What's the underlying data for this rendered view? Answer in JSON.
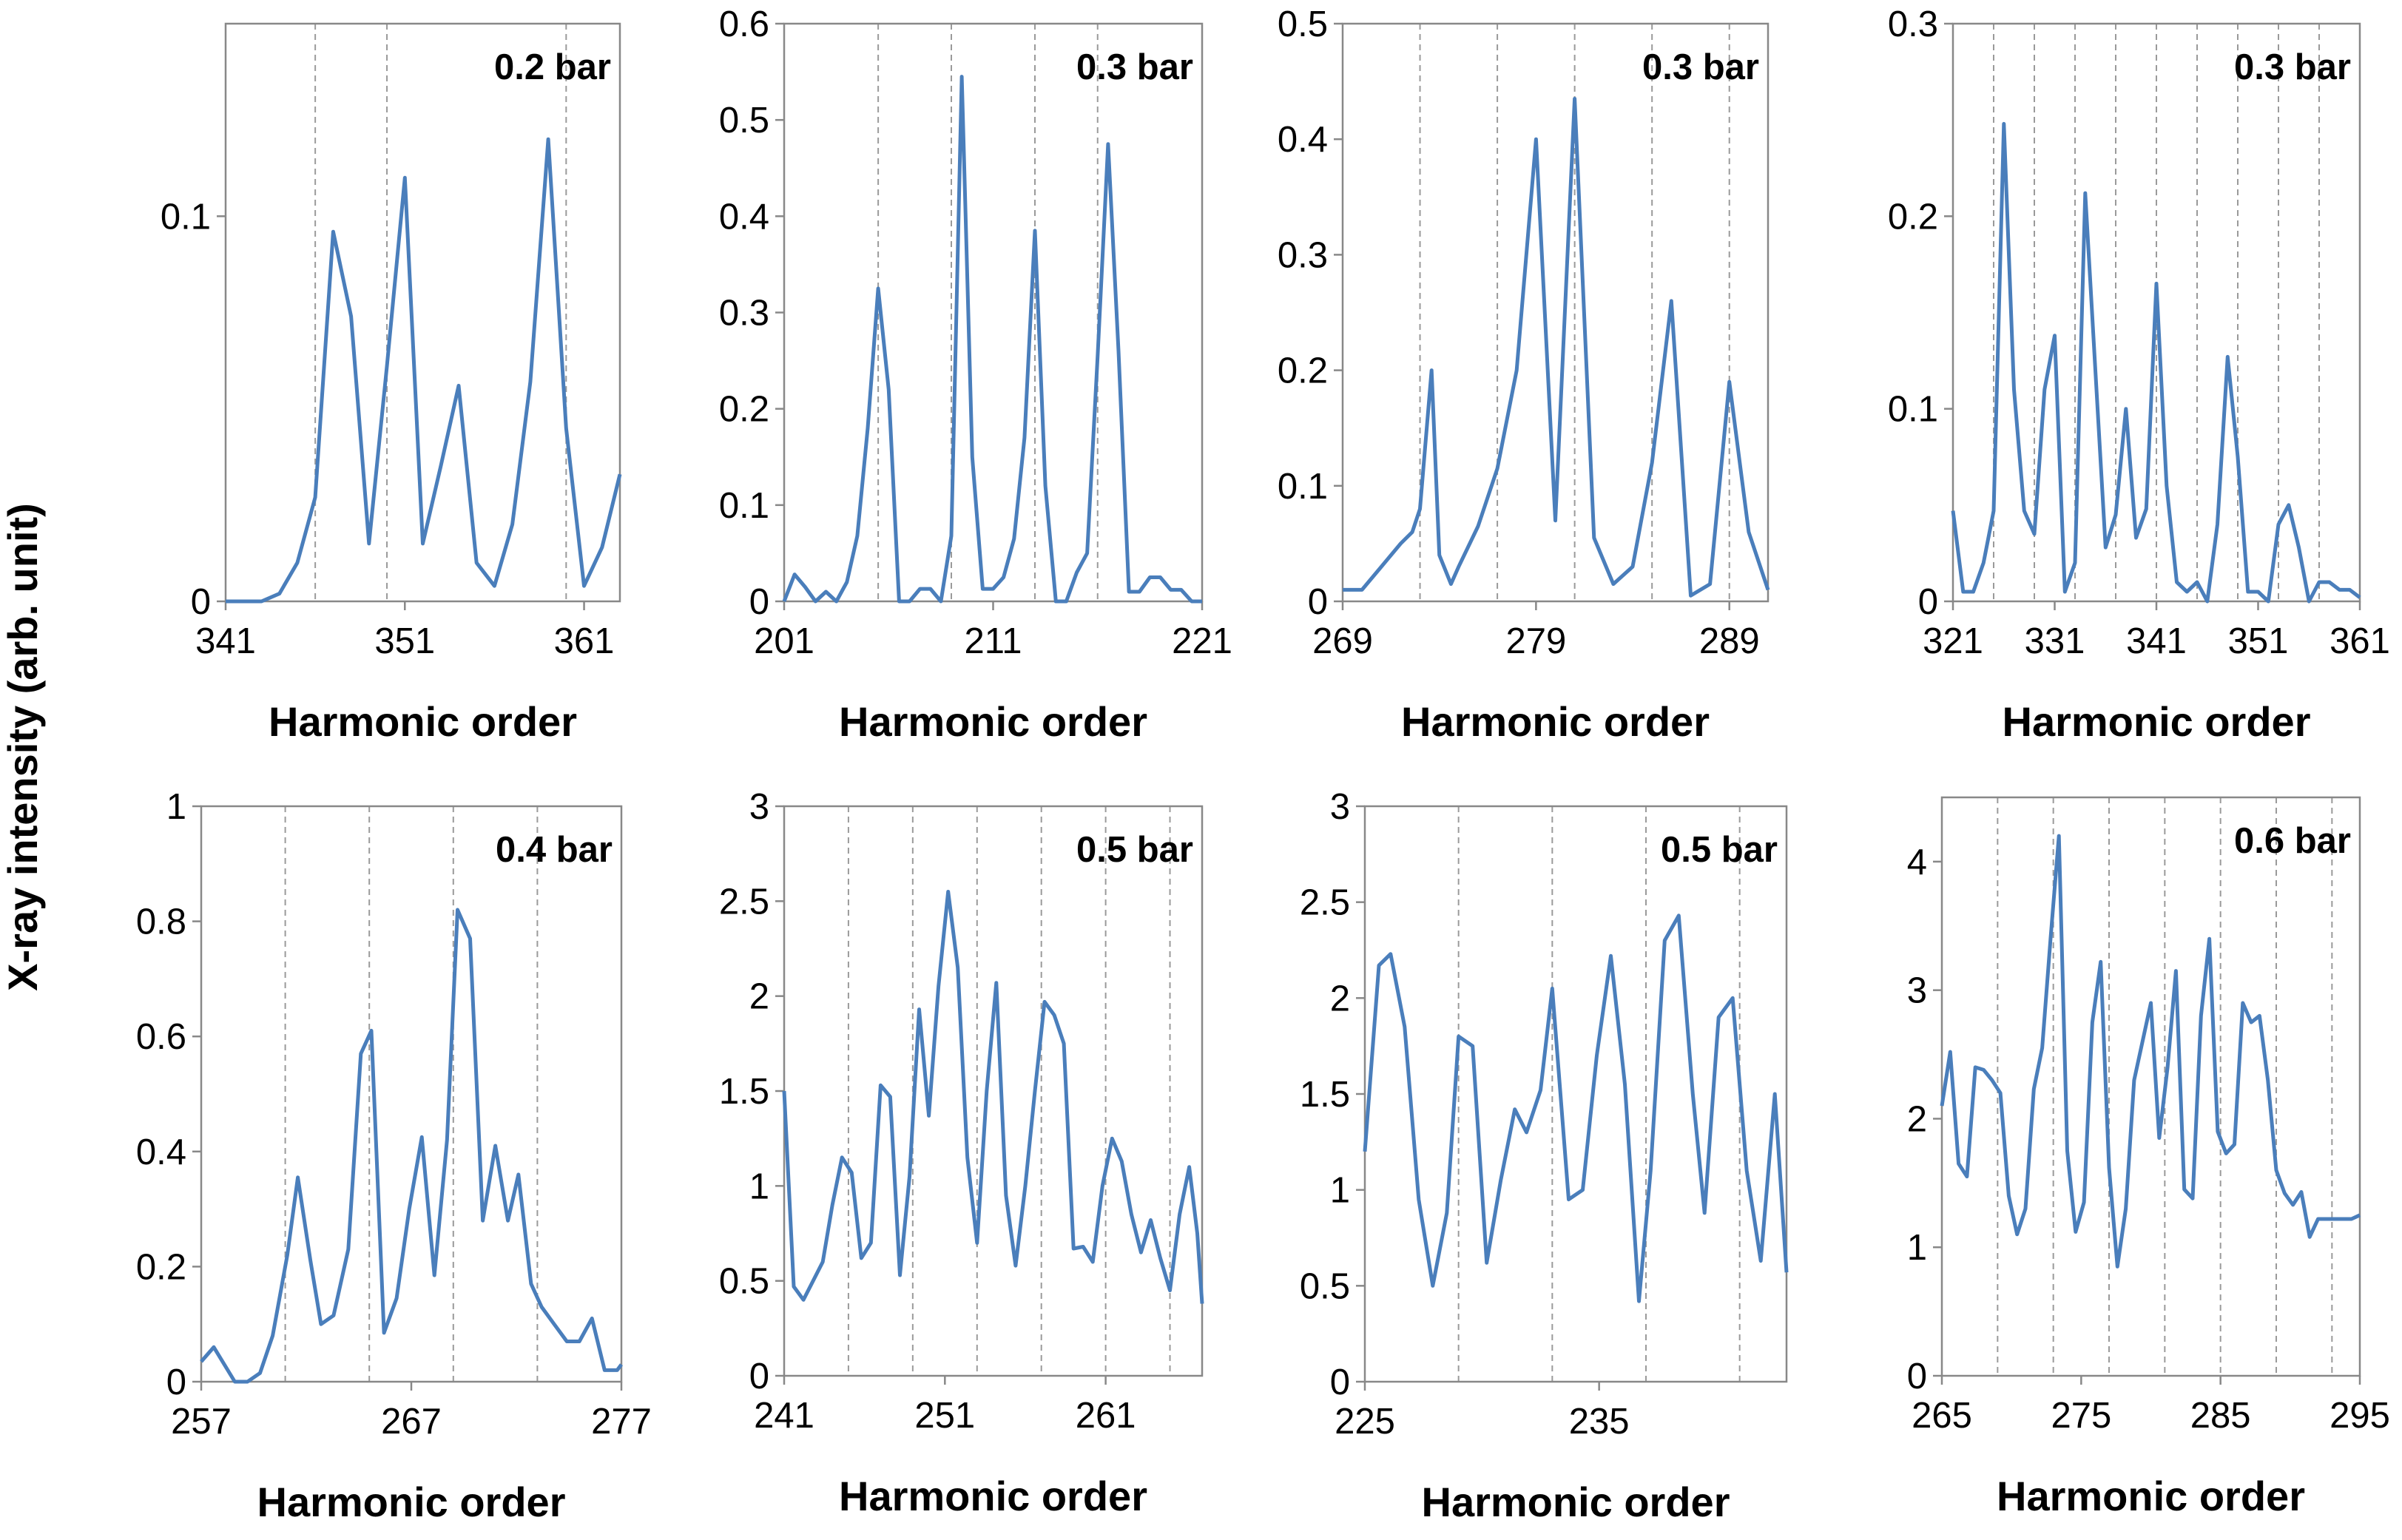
{
  "figure": {
    "shared_ylabel": "X-ray intensity (arb. unit)"
  },
  "chart_data": [
    {
      "type": "line",
      "title": "0.2 bar",
      "xlabel": "Harmonic order",
      "xlim": [
        341,
        363
      ],
      "ylim": [
        0,
        0.15
      ],
      "xticks": [
        341,
        351,
        361
      ],
      "yticks": [
        0,
        0.1
      ],
      "ytick_labels": [
        "0",
        "0.1"
      ],
      "grid_x": [
        346,
        350,
        360
      ],
      "x": [
        341,
        342,
        343,
        344,
        345,
        346,
        347,
        348,
        349,
        350,
        351,
        352,
        353,
        354,
        355,
        356,
        357,
        358,
        359,
        360,
        361,
        362,
        363
      ],
      "values": [
        0,
        0,
        0,
        0.002,
        0.01,
        0.027,
        0.096,
        0.074,
        0.015,
        0.061,
        0.11,
        0.015,
        0.035,
        0.056,
        0.01,
        0.004,
        0.02,
        0.057,
        0.12,
        0.045,
        0.004,
        0.014,
        0.033
      ]
    },
    {
      "type": "line",
      "title": "0.3 bar",
      "xlabel": "Harmonic order",
      "xlim": [
        201,
        221
      ],
      "ylim": [
        0,
        0.6
      ],
      "xticks": [
        201,
        211,
        221
      ],
      "yticks": [
        0,
        0.1,
        0.2,
        0.3,
        0.4,
        0.5,
        0.6
      ],
      "ytick_labels": [
        "0",
        "0.1",
        "0.2",
        "0.3",
        "0.4",
        "0.5",
        "0.6"
      ],
      "grid_x": [
        205.5,
        209,
        213,
        216
      ],
      "x": [
        201,
        201.5,
        202,
        202.5,
        203,
        203.5,
        204,
        204.5,
        205,
        205.5,
        206,
        206.5,
        207,
        207.5,
        208,
        208.5,
        209,
        209.5,
        210,
        210.5,
        211,
        211.5,
        212,
        212.5,
        213,
        213.5,
        214,
        214.5,
        215,
        215.5,
        216,
        216.5,
        217,
        217.5,
        218,
        218.5,
        219,
        219.5,
        220,
        220.5,
        221
      ],
      "values": [
        0,
        0.028,
        0.015,
        0.0,
        0.01,
        0.0,
        0.02,
        0.068,
        0.18,
        0.325,
        0.22,
        0.0,
        0.0,
        0.013,
        0.013,
        0.0,
        0.068,
        0.545,
        0.15,
        0.013,
        0.013,
        0.025,
        0.065,
        0.17,
        0.385,
        0.12,
        0.0,
        0.0,
        0.03,
        0.05,
        0.255,
        0.475,
        0.26,
        0.01,
        0.01,
        0.025,
        0.025,
        0.012,
        0.012,
        0.0,
        0.0
      ]
    },
    {
      "type": "line",
      "title": "0.3 bar",
      "xlabel": "Harmonic order",
      "xlim": [
        269,
        291
      ],
      "ylim": [
        0,
        0.5
      ],
      "xticks": [
        269,
        279,
        289
      ],
      "yticks": [
        0,
        0.1,
        0.2,
        0.3,
        0.4,
        0.5
      ],
      "ytick_labels": [
        "0",
        "0.1",
        "0.2",
        "0.3",
        "0.4",
        "0.5"
      ],
      "grid_x": [
        273,
        277,
        281,
        285,
        289
      ],
      "x": [
        269,
        270,
        271,
        272,
        272.6,
        273,
        273.6,
        274,
        274.6,
        275,
        276,
        277,
        278,
        279,
        280,
        281,
        282,
        283,
        284,
        285,
        286,
        287,
        288,
        289,
        290,
        291
      ],
      "values": [
        0.01,
        0.01,
        0.03,
        0.05,
        0.06,
        0.08,
        0.2,
        0.04,
        0.015,
        0.03,
        0.065,
        0.115,
        0.2,
        0.4,
        0.07,
        0.435,
        0.055,
        0.015,
        0.03,
        0.12,
        0.26,
        0.005,
        0.015,
        0.19,
        0.06,
        0.01
      ]
    },
    {
      "type": "line",
      "title": "0.3 bar",
      "xlabel": "Harmonic order",
      "xlim": [
        321,
        361
      ],
      "ylim": [
        0,
        0.3
      ],
      "xticks": [
        321,
        331,
        341,
        351,
        361
      ],
      "yticks": [
        0,
        0.1,
        0.2,
        0.3
      ],
      "ytick_labels": [
        "0",
        "0.1",
        "0.2",
        "0.3"
      ],
      "grid_x": [
        325,
        329,
        333,
        337,
        341,
        345,
        349,
        353,
        357
      ],
      "x": [
        321,
        322,
        323,
        324,
        325,
        326,
        327,
        328,
        329,
        330,
        331,
        332,
        333,
        334,
        335,
        336,
        337,
        338,
        339,
        340,
        341,
        342,
        343,
        344,
        345,
        346,
        347,
        348,
        349,
        350,
        351,
        352,
        353,
        354,
        355,
        356,
        357,
        358,
        359,
        360,
        361
      ],
      "values": [
        0.047,
        0.005,
        0.005,
        0.02,
        0.047,
        0.248,
        0.11,
        0.047,
        0.035,
        0.11,
        0.138,
        0.005,
        0.02,
        0.212,
        0.12,
        0.028,
        0.045,
        0.1,
        0.033,
        0.048,
        0.165,
        0.06,
        0.01,
        0.005,
        0.01,
        0.0,
        0.04,
        0.127,
        0.075,
        0.005,
        0.005,
        0.0,
        0.04,
        0.05,
        0.028,
        0.0,
        0.01,
        0.01,
        0.006,
        0.006,
        0.002
      ]
    },
    {
      "type": "line",
      "title": "0.4 bar",
      "xlabel": "Harmonic order",
      "xlim": [
        257,
        277
      ],
      "ylim": [
        0,
        1
      ],
      "xticks": [
        257,
        267,
        277
      ],
      "yticks": [
        0,
        0.2,
        0.4,
        0.6,
        0.8,
        1
      ],
      "ytick_labels": [
        "0",
        "0.2",
        "0.4",
        "0.6",
        "0.8",
        "1"
      ],
      "grid_x": [
        261,
        265,
        269,
        273
      ],
      "x": [
        257,
        257.6,
        258.6,
        259.2,
        259.8,
        260.4,
        261.1,
        261.6,
        262.2,
        262.7,
        263.3,
        264.0,
        264.6,
        265.1,
        265.7,
        266.3,
        266.9,
        267.5,
        268.1,
        268.7,
        269.2,
        269.8,
        270.4,
        271.0,
        271.6,
        272.1,
        272.7,
        273.2,
        273.8,
        274.4,
        275.0,
        275.6,
        276.2,
        276.8,
        277
      ],
      "values": [
        0.035,
        0.06,
        0.0,
        0.0,
        0.015,
        0.08,
        0.22,
        0.355,
        0.21,
        0.1,
        0.115,
        0.23,
        0.57,
        0.61,
        0.085,
        0.145,
        0.3,
        0.425,
        0.185,
        0.42,
        0.82,
        0.77,
        0.28,
        0.41,
        0.28,
        0.36,
        0.17,
        0.13,
        0.1,
        0.07,
        0.07,
        0.11,
        0.02,
        0.02,
        0.03
      ]
    },
    {
      "type": "line",
      "title": "0.5 bar",
      "xlabel": "Harmonic order",
      "xlim": [
        241,
        267
      ],
      "ylim": [
        0,
        3
      ],
      "xticks": [
        241,
        251,
        261
      ],
      "yticks": [
        0,
        0.5,
        1,
        1.5,
        2,
        2.5,
        3
      ],
      "ytick_labels": [
        "0",
        "0.5",
        "1",
        "1.5",
        "2",
        "2.5",
        "3"
      ],
      "grid_x": [
        245,
        249,
        253,
        257,
        261,
        265
      ],
      "x": [
        241,
        241.6,
        242.2,
        242.8,
        243.4,
        244.0,
        244.6,
        245.2,
        245.8,
        246.4,
        247.0,
        247.6,
        248.2,
        248.8,
        249.4,
        250.0,
        250.6,
        251.2,
        251.8,
        252.4,
        253.0,
        253.6,
        254.2,
        254.8,
        255.4,
        256.0,
        256.6,
        257.2,
        257.8,
        258.4,
        259.0,
        259.6,
        260.2,
        260.8,
        261.4,
        262.0,
        262.6,
        263.2,
        263.8,
        264.4,
        265.0,
        265.6,
        266.2,
        266.7,
        267
      ],
      "values": [
        1.5,
        0.47,
        0.4,
        0.5,
        0.6,
        0.9,
        1.15,
        1.07,
        0.62,
        0.7,
        1.53,
        1.47,
        0.53,
        1.05,
        1.93,
        1.37,
        2.05,
        2.55,
        2.15,
        1.15,
        0.7,
        1.5,
        2.07,
        0.95,
        0.58,
        1.0,
        1.5,
        1.97,
        1.9,
        1.75,
        0.67,
        0.68,
        0.6,
        1.0,
        1.25,
        1.13,
        0.85,
        0.65,
        0.82,
        0.62,
        0.45,
        0.85,
        1.1,
        0.75,
        0.38
      ]
    },
    {
      "type": "line",
      "title": "0.5 bar",
      "xlabel": "Harmonic order",
      "xlim": [
        225,
        243
      ],
      "ylim": [
        0,
        3
      ],
      "xticks": [
        225,
        235
      ],
      "yticks": [
        0,
        0.5,
        1,
        1.5,
        2,
        2.5,
        3
      ],
      "ytick_labels": [
        "0",
        "0.5",
        "1",
        "1.5",
        "2",
        "2.5",
        "3"
      ],
      "grid_x": [
        229,
        233,
        237,
        241
      ],
      "x": [
        225,
        225.6,
        226.1,
        226.7,
        227.3,
        227.9,
        228.5,
        229.0,
        229.6,
        230.2,
        230.8,
        231.4,
        231.9,
        232.5,
        233.0,
        233.7,
        234.3,
        234.9,
        235.5,
        236.1,
        236.7,
        237.2,
        237.8,
        238.4,
        239.0,
        239.5,
        240.1,
        240.7,
        241.3,
        241.9,
        242.5,
        243
      ],
      "values": [
        1.2,
        2.17,
        2.23,
        1.85,
        0.95,
        0.5,
        0.88,
        1.8,
        1.75,
        0.62,
        1.05,
        1.42,
        1.3,
        1.52,
        2.05,
        0.95,
        1.0,
        1.7,
        2.22,
        1.55,
        0.42,
        1.1,
        2.3,
        2.43,
        1.5,
        0.88,
        1.9,
        2.0,
        1.1,
        0.63,
        1.5,
        0.57
      ]
    },
    {
      "type": "line",
      "title": "0.6 bar",
      "xlabel": "Harmonic order",
      "xlim": [
        265,
        295
      ],
      "ylim": [
        0,
        4.5
      ],
      "xticks": [
        265,
        275,
        285,
        295
      ],
      "yticks": [
        0,
        1,
        2,
        3,
        4
      ],
      "ytick_labels": [
        "0",
        "1",
        "2",
        "3",
        "4"
      ],
      "grid_x": [
        269,
        273,
        277,
        281,
        285,
        289,
        293
      ],
      "x": [
        265,
        265.6,
        266.2,
        266.8,
        267.4,
        268.0,
        268.6,
        269.2,
        269.8,
        270.4,
        271.0,
        271.6,
        272.2,
        272.8,
        273.4,
        274.0,
        274.6,
        275.2,
        275.8,
        276.4,
        277.0,
        277.6,
        278.2,
        278.8,
        279.4,
        280.0,
        280.6,
        281.2,
        281.8,
        282.4,
        283.0,
        283.6,
        284.2,
        284.8,
        285.4,
        286.0,
        286.6,
        287.2,
        287.8,
        288.4,
        289.0,
        289.6,
        290.2,
        290.8,
        291.4,
        292.0,
        292.6,
        293.2,
        293.8,
        294.4,
        295
      ],
      "values": [
        2.1,
        2.52,
        1.65,
        1.55,
        2.4,
        2.38,
        2.3,
        2.2,
        1.4,
        1.1,
        1.3,
        2.23,
        2.55,
        3.4,
        4.2,
        1.75,
        1.12,
        1.35,
        2.75,
        3.22,
        1.62,
        0.85,
        1.3,
        2.3,
        2.6,
        2.9,
        1.85,
        2.4,
        3.15,
        1.45,
        1.38,
        2.8,
        3.4,
        1.9,
        1.73,
        1.8,
        2.9,
        2.75,
        2.8,
        2.3,
        1.6,
        1.42,
        1.33,
        1.43,
        1.08,
        1.22,
        1.22,
        1.22,
        1.22,
        1.22,
        1.25
      ]
    }
  ]
}
